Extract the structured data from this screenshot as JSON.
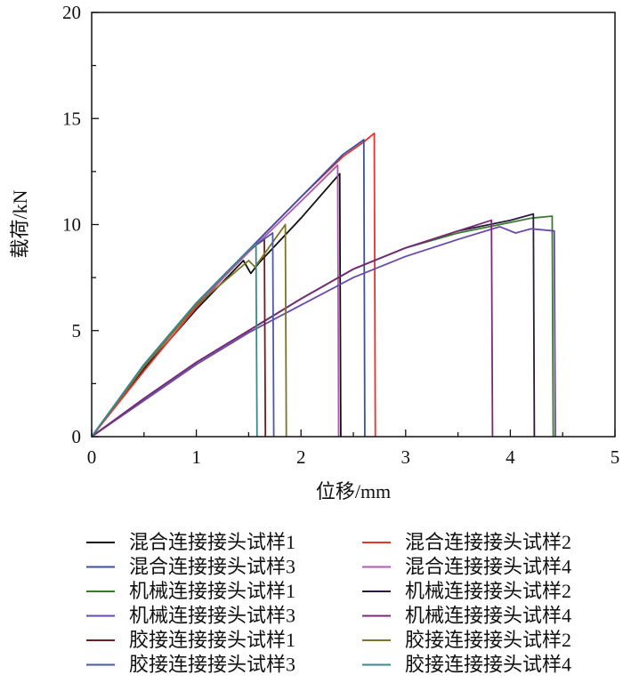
{
  "chart_data": {
    "type": "line",
    "title": "",
    "xlabel": "位移/mm",
    "ylabel": "载荷/kN",
    "xlim": [
      0,
      5
    ],
    "ylim": [
      0,
      20
    ],
    "xticks": [
      "0",
      "1",
      "2",
      "3",
      "4",
      "5"
    ],
    "yticks": [
      "0",
      "5",
      "10",
      "15",
      "20"
    ],
    "grid": false,
    "legend_position": "bottom",
    "series": [
      {
        "name": "混合连接接头试样1",
        "color": "#111111",
        "points": [
          [
            0,
            0
          ],
          [
            0.5,
            3.2
          ],
          [
            1,
            6.0
          ],
          [
            1.45,
            8.3
          ],
          [
            1.52,
            7.7
          ],
          [
            1.6,
            8.2
          ],
          [
            2.0,
            10.3
          ],
          [
            2.37,
            12.4
          ],
          [
            2.38,
            0
          ]
        ]
      },
      {
        "name": "混合连接接头试样2",
        "color": "#e8322c",
        "points": [
          [
            0,
            0
          ],
          [
            0.5,
            3.1
          ],
          [
            1,
            6.1
          ],
          [
            1.5,
            8.8
          ],
          [
            2.0,
            11.3
          ],
          [
            2.4,
            13.2
          ],
          [
            2.6,
            13.9
          ],
          [
            2.7,
            14.3
          ],
          [
            2.71,
            0
          ]
        ]
      },
      {
        "name": "混合连接接头试样3",
        "color": "#3c4fa0",
        "points": [
          [
            0,
            0
          ],
          [
            0.5,
            3.4
          ],
          [
            1,
            6.3
          ],
          [
            1.5,
            8.8
          ],
          [
            2.0,
            11.3
          ],
          [
            2.4,
            13.3
          ],
          [
            2.6,
            14.0
          ],
          [
            2.61,
            0
          ]
        ]
      },
      {
        "name": "混合连接接头试样4",
        "color": "#b05aae",
        "points": [
          [
            0,
            0
          ],
          [
            0.5,
            3.3
          ],
          [
            1,
            6.2
          ],
          [
            1.5,
            8.7
          ],
          [
            2.0,
            11.1
          ],
          [
            2.35,
            12.8
          ],
          [
            2.36,
            0
          ]
        ]
      },
      {
        "name": "机械连接接头试样1",
        "color": "#3d7a2e",
        "points": [
          [
            0,
            0
          ],
          [
            0.5,
            1.8
          ],
          [
            1,
            3.5
          ],
          [
            1.5,
            5.0
          ],
          [
            2,
            6.5
          ],
          [
            2.5,
            7.9
          ],
          [
            3,
            8.9
          ],
          [
            3.5,
            9.6
          ],
          [
            4,
            10.1
          ],
          [
            4.2,
            10.3
          ],
          [
            4.4,
            10.4
          ],
          [
            4.41,
            0
          ]
        ]
      },
      {
        "name": "机械连接接头试样2",
        "color": "#2a1a3e",
        "points": [
          [
            0,
            0
          ],
          [
            0.5,
            1.8
          ],
          [
            1,
            3.5
          ],
          [
            1.5,
            5.0
          ],
          [
            2,
            6.5
          ],
          [
            2.5,
            7.9
          ],
          [
            3,
            8.9
          ],
          [
            3.5,
            9.7
          ],
          [
            4,
            10.2
          ],
          [
            4.22,
            10.5
          ],
          [
            4.23,
            0
          ]
        ]
      },
      {
        "name": "机械连接接头试样3",
        "color": "#6a4aa8",
        "points": [
          [
            0,
            0
          ],
          [
            0.5,
            1.7
          ],
          [
            1,
            3.4
          ],
          [
            1.5,
            4.9
          ],
          [
            2,
            6.2
          ],
          [
            2.5,
            7.5
          ],
          [
            3,
            8.5
          ],
          [
            3.5,
            9.3
          ],
          [
            3.9,
            9.9
          ],
          [
            4.05,
            9.6
          ],
          [
            4.2,
            9.8
          ],
          [
            4.42,
            9.7
          ],
          [
            4.43,
            0
          ]
        ]
      },
      {
        "name": "机械连接接头试样4",
        "color": "#7a2a78",
        "points": [
          [
            0,
            0
          ],
          [
            0.5,
            1.8
          ],
          [
            1,
            3.5
          ],
          [
            1.5,
            5.0
          ],
          [
            2,
            6.5
          ],
          [
            2.5,
            7.9
          ],
          [
            3,
            8.9
          ],
          [
            3.5,
            9.7
          ],
          [
            3.82,
            10.2
          ],
          [
            3.83,
            0
          ]
        ]
      },
      {
        "name": "胶接连接接头试样1",
        "color": "#6b1f1f",
        "points": [
          [
            0,
            0
          ],
          [
            0.5,
            3.4
          ],
          [
            1,
            6.3
          ],
          [
            1.5,
            8.8
          ],
          [
            1.65,
            9.3
          ],
          [
            1.66,
            0
          ]
        ]
      },
      {
        "name": "胶接连接接头试样2",
        "color": "#7d7424",
        "points": [
          [
            0,
            0
          ],
          [
            0.5,
            3.3
          ],
          [
            1,
            6.2
          ],
          [
            1.5,
            8.3
          ],
          [
            1.56,
            8.0
          ],
          [
            1.85,
            10.0
          ],
          [
            1.86,
            0
          ]
        ]
      },
      {
        "name": "胶接连接接头试样3",
        "color": "#4a5aa8",
        "points": [
          [
            0,
            0
          ],
          [
            0.5,
            3.4
          ],
          [
            1,
            6.3
          ],
          [
            1.5,
            8.8
          ],
          [
            1.73,
            9.6
          ],
          [
            1.74,
            0
          ]
        ]
      },
      {
        "name": "胶接连接接头试样4",
        "color": "#3a8a8a",
        "points": [
          [
            0,
            0
          ],
          [
            0.5,
            3.4
          ],
          [
            1,
            6.3
          ],
          [
            1.5,
            8.8
          ],
          [
            1.57,
            9.1
          ],
          [
            1.58,
            0
          ]
        ]
      }
    ]
  }
}
